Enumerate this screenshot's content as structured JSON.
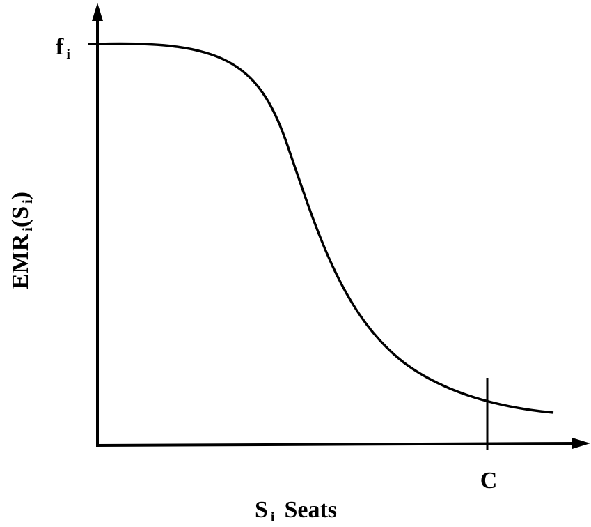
{
  "y_axis": {
    "label": "EMR",
    "label_sub": "i",
    "label_arg": "(S",
    "label_arg_sub": "i",
    "label_close": ")"
  },
  "x_axis": {
    "label": "S",
    "label_sub": "i",
    "label_text": "Seats"
  },
  "markers": {
    "top": {
      "label": "f",
      "sub": "i"
    },
    "capacity": "C"
  }
}
